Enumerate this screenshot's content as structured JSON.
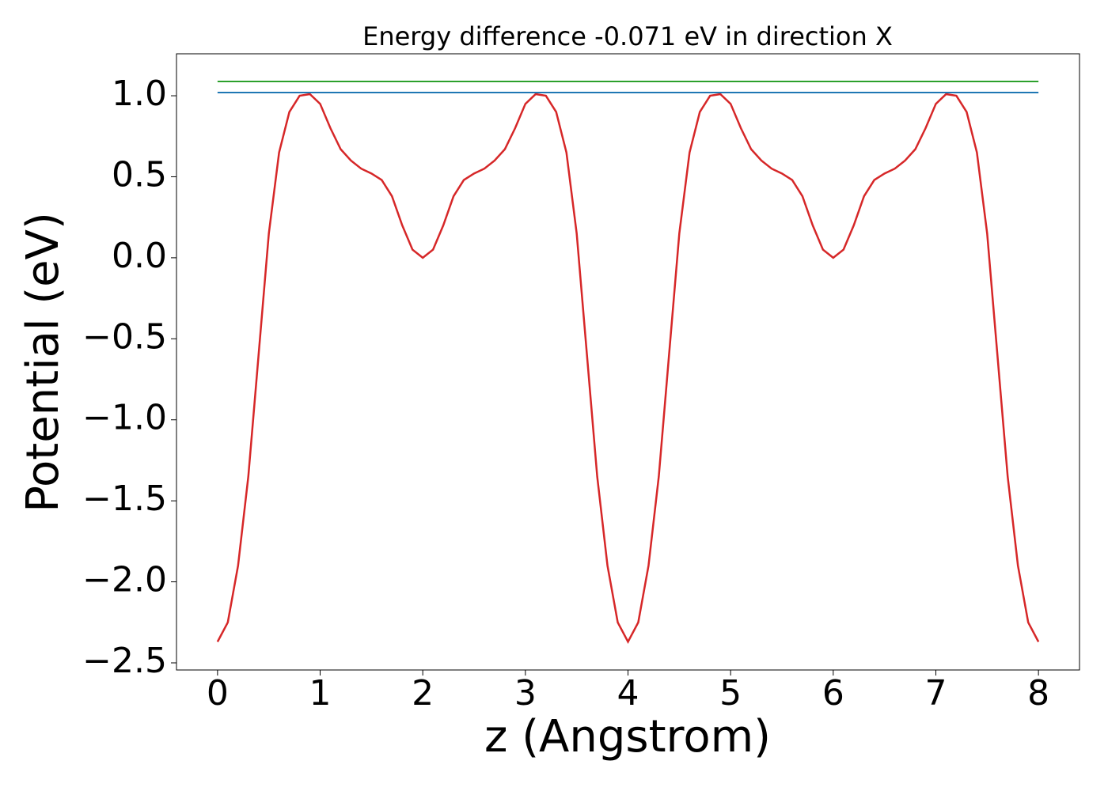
{
  "chart_data": {
    "type": "line",
    "title": "Energy difference -0.071 eV in direction X",
    "x_label": "z (Angstrom)",
    "y_label": "Potential (eV)",
    "xlim": [
      -0.4,
      8.4
    ],
    "ylim": [
      -2.544,
      1.259
    ],
    "xticks": [
      0,
      1,
      2,
      3,
      4,
      5,
      6,
      7,
      8
    ],
    "yticks": [
      {
        "value": 1.0,
        "label": "1.0"
      },
      0.5,
      {
        "value": 0.0,
        "label": "0.0"
      },
      {
        "value": -0.5,
        "label": "−0.5"
      },
      {
        "value": -1.0,
        "label": "−1.0"
      },
      {
        "value": -1.5,
        "label": "−1.5"
      },
      {
        "value": -2.0,
        "label": "−2.0"
      },
      {
        "value": -2.5,
        "label": "−2.5"
      }
    ],
    "series": [
      {
        "color": "#d62728",
        "x": [
          0,
          0.1,
          0.2,
          0.3,
          0.4,
          0.5,
          0.6,
          0.7,
          0.8,
          0.9,
          1,
          1.1,
          1.2,
          1.3,
          1.4,
          1.5,
          1.6,
          1.7,
          1.8,
          1.9,
          2,
          2.1,
          2.2,
          2.3,
          2.4,
          2.5,
          2.6,
          2.7,
          2.8,
          2.9,
          3,
          3.1,
          3.2,
          3.3,
          3.4,
          3.5,
          3.6,
          3.7,
          3.8,
          3.9,
          4,
          4.1,
          4.2,
          4.3,
          4.4,
          4.5,
          4.6,
          4.7,
          4.8,
          4.9,
          5,
          5.1,
          5.2,
          5.3,
          5.4,
          5.5,
          5.6,
          5.7,
          5.8,
          5.9,
          6,
          6.1,
          6.2,
          6.3,
          6.4,
          6.5,
          6.6,
          6.7,
          6.8,
          6.9,
          7,
          7.1,
          7.2,
          7.3,
          7.4,
          7.5,
          7.6,
          7.7,
          7.8,
          7.9,
          8
        ],
        "values": [
          -2.37,
          -2.25,
          -1.9,
          -1.35,
          -0.6,
          0.15,
          0.65,
          0.9,
          1.0,
          1.01,
          0.95,
          0.8,
          0.67,
          0.6,
          0.55,
          0.52,
          0.48,
          0.38,
          0.2,
          0.05,
          0.0,
          0.05,
          0.2,
          0.38,
          0.48,
          0.52,
          0.55,
          0.6,
          0.67,
          0.8,
          0.95,
          1.01,
          1.0,
          0.9,
          0.65,
          0.15,
          -0.6,
          -1.35,
          -1.9,
          -2.25,
          -2.37,
          -2.25,
          -1.9,
          -1.35,
          -0.6,
          0.15,
          0.65,
          0.9,
          1.0,
          1.01,
          0.95,
          0.8,
          0.67,
          0.6,
          0.55,
          0.52,
          0.48,
          0.38,
          0.2,
          0.05,
          0.0,
          0.05,
          0.2,
          0.38,
          0.48,
          0.52,
          0.55,
          0.6,
          0.67,
          0.8,
          0.95,
          1.01,
          1.0,
          0.9,
          0.65,
          0.15,
          -0.6,
          -1.35,
          -1.9,
          -2.25,
          -2.37
        ]
      },
      {
        "color": "#2ca02c",
        "x": [
          0,
          8
        ],
        "values": [
          1.088,
          1.088
        ]
      },
      {
        "color": "#1f77b4",
        "x": [
          0,
          8
        ],
        "values": [
          1.02,
          1.02
        ]
      }
    ]
  }
}
